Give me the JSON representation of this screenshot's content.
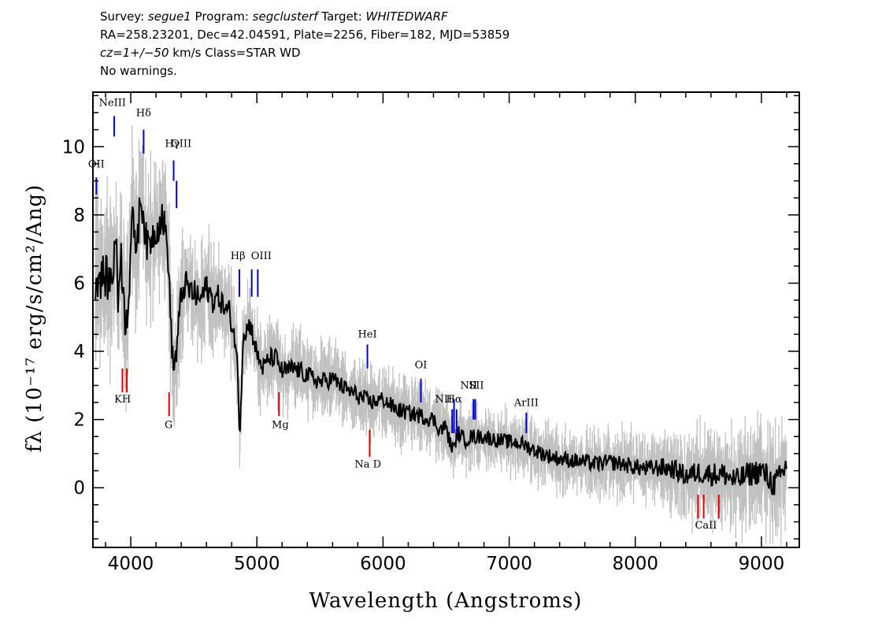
{
  "header": {
    "line1": {
      "survey_label": "Survey: ",
      "survey": "segue1",
      "program_label": " Program: ",
      "program": "segclusterf",
      "target_label": " Target: ",
      "target": "WHITEDWARF"
    },
    "line2": "RA=258.23201, Dec=42.04591, Plate=2256, Fiber=182, MJD=53859",
    "line3": {
      "cz": "cz=1+/−50",
      "rest": " km/s Class=STAR WD"
    },
    "line4": "No warnings."
  },
  "chart_data": {
    "type": "line",
    "xlabel": "Wavelength (Angstroms)",
    "ylabel": "fλ (10⁻¹⁷ erg/s/cm²/Ang)",
    "xlim": [
      3700,
      9300
    ],
    "ylim": [
      -1.75,
      11.6
    ],
    "x_ticks": [
      4000,
      5000,
      6000,
      7000,
      8000,
      9000
    ],
    "y_ticks": [
      0,
      2,
      4,
      6,
      8,
      10
    ],
    "x_tick_labels": [
      "4000",
      "5000",
      "6000",
      "7000",
      "8000",
      "9000"
    ],
    "y_tick_labels": [
      "0",
      "2",
      "4",
      "6",
      "8",
      "10"
    ],
    "grid": false,
    "series": [
      {
        "role": "flux",
        "color": "#000000",
        "x": [
          3800,
          3830,
          3860,
          3880,
          3900,
          3920,
          3935,
          3950,
          3970,
          3990,
          4010,
          4030,
          4060,
          4080,
          4100,
          4130,
          4160,
          4190,
          4220,
          4250,
          4280,
          4300,
          4320,
          4340,
          4360,
          4380,
          4400,
          4430,
          4460,
          4500,
          4550,
          4600,
          4650,
          4700,
          4750,
          4780,
          4800,
          4830,
          4850,
          4862,
          4875,
          4890,
          4910,
          4950,
          5000,
          5050,
          5100,
          5150,
          5200,
          5300,
          5400,
          5500,
          5600,
          5700,
          5800,
          5900,
          6000,
          6100,
          6200,
          6300,
          6400,
          6450,
          6500,
          6530,
          6550,
          6563,
          6580,
          6600,
          6650,
          6700,
          6800,
          6900,
          7000,
          7100,
          7200,
          7300,
          7400,
          7500,
          7600,
          7700,
          7800,
          7900,
          8000,
          8100,
          8200,
          8300,
          8400,
          8500,
          8600,
          8700,
          8800,
          8900,
          9000,
          9100,
          9150,
          9190
        ],
        "y": [
          6.2,
          6.0,
          6.4,
          7.6,
          5.4,
          7.2,
          6.0,
          5.0,
          5.0,
          6.2,
          8.2,
          7.0,
          7.6,
          8.6,
          8.0,
          7.0,
          7.3,
          7.5,
          7.7,
          8.0,
          7.4,
          6.6,
          4.5,
          3.5,
          3.9,
          4.8,
          5.6,
          6.0,
          5.8,
          5.7,
          5.5,
          5.9,
          5.5,
          5.6,
          5.2,
          5.2,
          4.8,
          4.3,
          3.2,
          1.7,
          2.6,
          4.5,
          4.6,
          4.8,
          3.9,
          3.5,
          3.8,
          3.8,
          3.4,
          3.5,
          3.3,
          3.1,
          3.2,
          2.9,
          2.7,
          2.5,
          2.6,
          2.3,
          2.2,
          2.1,
          2.0,
          1.7,
          1.8,
          1.3,
          1.2,
          1.1,
          1.5,
          1.6,
          1.4,
          1.5,
          1.5,
          1.4,
          1.35,
          1.3,
          1.1,
          0.95,
          0.85,
          0.8,
          0.75,
          0.7,
          0.75,
          0.7,
          0.6,
          0.55,
          0.6,
          0.55,
          0.35,
          0.45,
          0.4,
          0.4,
          0.2,
          0.4,
          0.5,
          0.1,
          0.3,
          0.6
        ]
      },
      {
        "role": "flux-noise-band",
        "color": "#c0c0c0",
        "spread": [
          [
            3700,
            2.5
          ],
          [
            4400,
            1.6
          ],
          [
            5000,
            1.1
          ],
          [
            6000,
            0.9
          ],
          [
            7000,
            0.8
          ],
          [
            8000,
            0.9
          ],
          [
            8500,
            1.2
          ],
          [
            9200,
            1.5
          ]
        ]
      }
    ],
    "emission_lines": [
      {
        "label": "OII",
        "x": 3727,
        "y0": 8.6,
        "y1": 9.1,
        "text_y": 9.4
      },
      {
        "label": "NeIII",
        "x": 3869,
        "y0": 10.3,
        "y1": 10.9,
        "text_y": 11.2
      },
      {
        "label": "Hδ",
        "x": 4102,
        "y0": 9.8,
        "y1": 10.5,
        "text_y": 10.9
      },
      {
        "label": "Hγ",
        "x": 4340,
        "y0": 9.0,
        "y1": 9.6,
        "text_y": 10.0
      },
      {
        "label": "OIII",
        "x": 4363,
        "y0": 8.2,
        "y1": 9.0,
        "text_y": 9.3
      },
      {
        "label": "Hβ",
        "x": 4861,
        "y0": 5.6,
        "y1": 6.4,
        "text_y": 6.7
      },
      {
        "label": "OIII",
        "x": 4959,
        "y0": 5.6,
        "y1": 6.4,
        "text_y": 6.7
      },
      {
        "label": "OIII",
        "x": 5007,
        "y0": 5.6,
        "y1": 6.4,
        "text_y": 6.7
      },
      {
        "label": "HeI",
        "x": 5876,
        "y0": 3.5,
        "y1": 4.2,
        "text_y": 4.4
      },
      {
        "label": "OI",
        "x": 6300,
        "y0": 2.5,
        "y1": 3.2,
        "text_y": 3.5
      },
      {
        "label": "NII",
        "x": 6548,
        "y0": 1.6,
        "y1": 2.3,
        "text_y": 2.5
      },
      {
        "label": "Hα",
        "x": 6563,
        "y0": 1.6,
        "y1": 2.6,
        "text_y": 2.9
      },
      {
        "label": "NII",
        "x": 6583,
        "y0": 1.6,
        "y1": 2.3,
        "text_y": 2.5
      },
      {
        "label": "SII",
        "x": 6717,
        "y0": 2.0,
        "y1": 2.6,
        "text_y": 2.9
      },
      {
        "label": "SII",
        "x": 6731,
        "y0": 2.0,
        "y1": 2.6,
        "text_y": 2.9
      },
      {
        "label": "ArIII",
        "x": 7136,
        "y0": 1.6,
        "y1": 2.2,
        "text_y": 2.4
      }
    ],
    "absorption_lines": [
      {
        "label": "K",
        "x": 3934,
        "y0": 2.8,
        "y1": 3.5,
        "text_y": 2.5
      },
      {
        "label": "H",
        "x": 3969,
        "y0": 2.8,
        "y1": 3.5,
        "text_y": 2.5
      },
      {
        "label": "G",
        "x": 4304,
        "y0": 2.1,
        "y1": 2.8,
        "text_y": 1.75
      },
      {
        "label": "Mg",
        "x": 5175,
        "y0": 2.1,
        "y1": 2.8,
        "text_y": 1.75
      },
      {
        "label": "Na",
        "x": 5894,
        "y0": 0.9,
        "y1": 1.7,
        "text_y": 0.6
      },
      {
        "label": "CaII",
        "x": 8498,
        "y0": -0.9,
        "y1": -0.2,
        "text_y": -1.2
      },
      {
        "label": "CaII",
        "x": 8542,
        "y0": -0.9,
        "y1": -0.2,
        "text_y": -1.2
      },
      {
        "label": "CaII",
        "x": 8662,
        "y0": -0.9,
        "y1": -0.2,
        "text_y": -1.2
      }
    ],
    "absorption_text_labels": [
      {
        "text": "KH",
        "x": 3935
      },
      {
        "text": "G",
        "x": 4300
      },
      {
        "text": "Mg",
        "x": 5185
      },
      {
        "text": "Na  D",
        "x": 5880
      },
      {
        "text": "CaII",
        "x": 8560
      }
    ],
    "emission_text_labels": [
      {
        "text": "OII",
        "x": 3727
      },
      {
        "text": "NeIII",
        "x": 3855
      },
      {
        "text": "Hδ",
        "x": 4102
      },
      {
        "text": "Hγ",
        "x": 4330
      },
      {
        "text": "OIII",
        "x": 4400
      },
      {
        "text": "Hβ",
        "x": 4850
      },
      {
        "text": "OIII",
        "x": 5035
      },
      {
        "text": "HeI",
        "x": 5876
      },
      {
        "text": "OI",
        "x": 6300
      },
      {
        "text": "NII",
        "x": 6480
      },
      {
        "text": "Hα",
        "x": 6563
      },
      {
        "text": "SII",
        "x": 6740
      },
      {
        "text": "NII",
        "x": 6680
      },
      {
        "text": "ArIII",
        "x": 7136
      }
    ],
    "emission_color": "#0000cc",
    "absorption_color": "#dd0000"
  }
}
